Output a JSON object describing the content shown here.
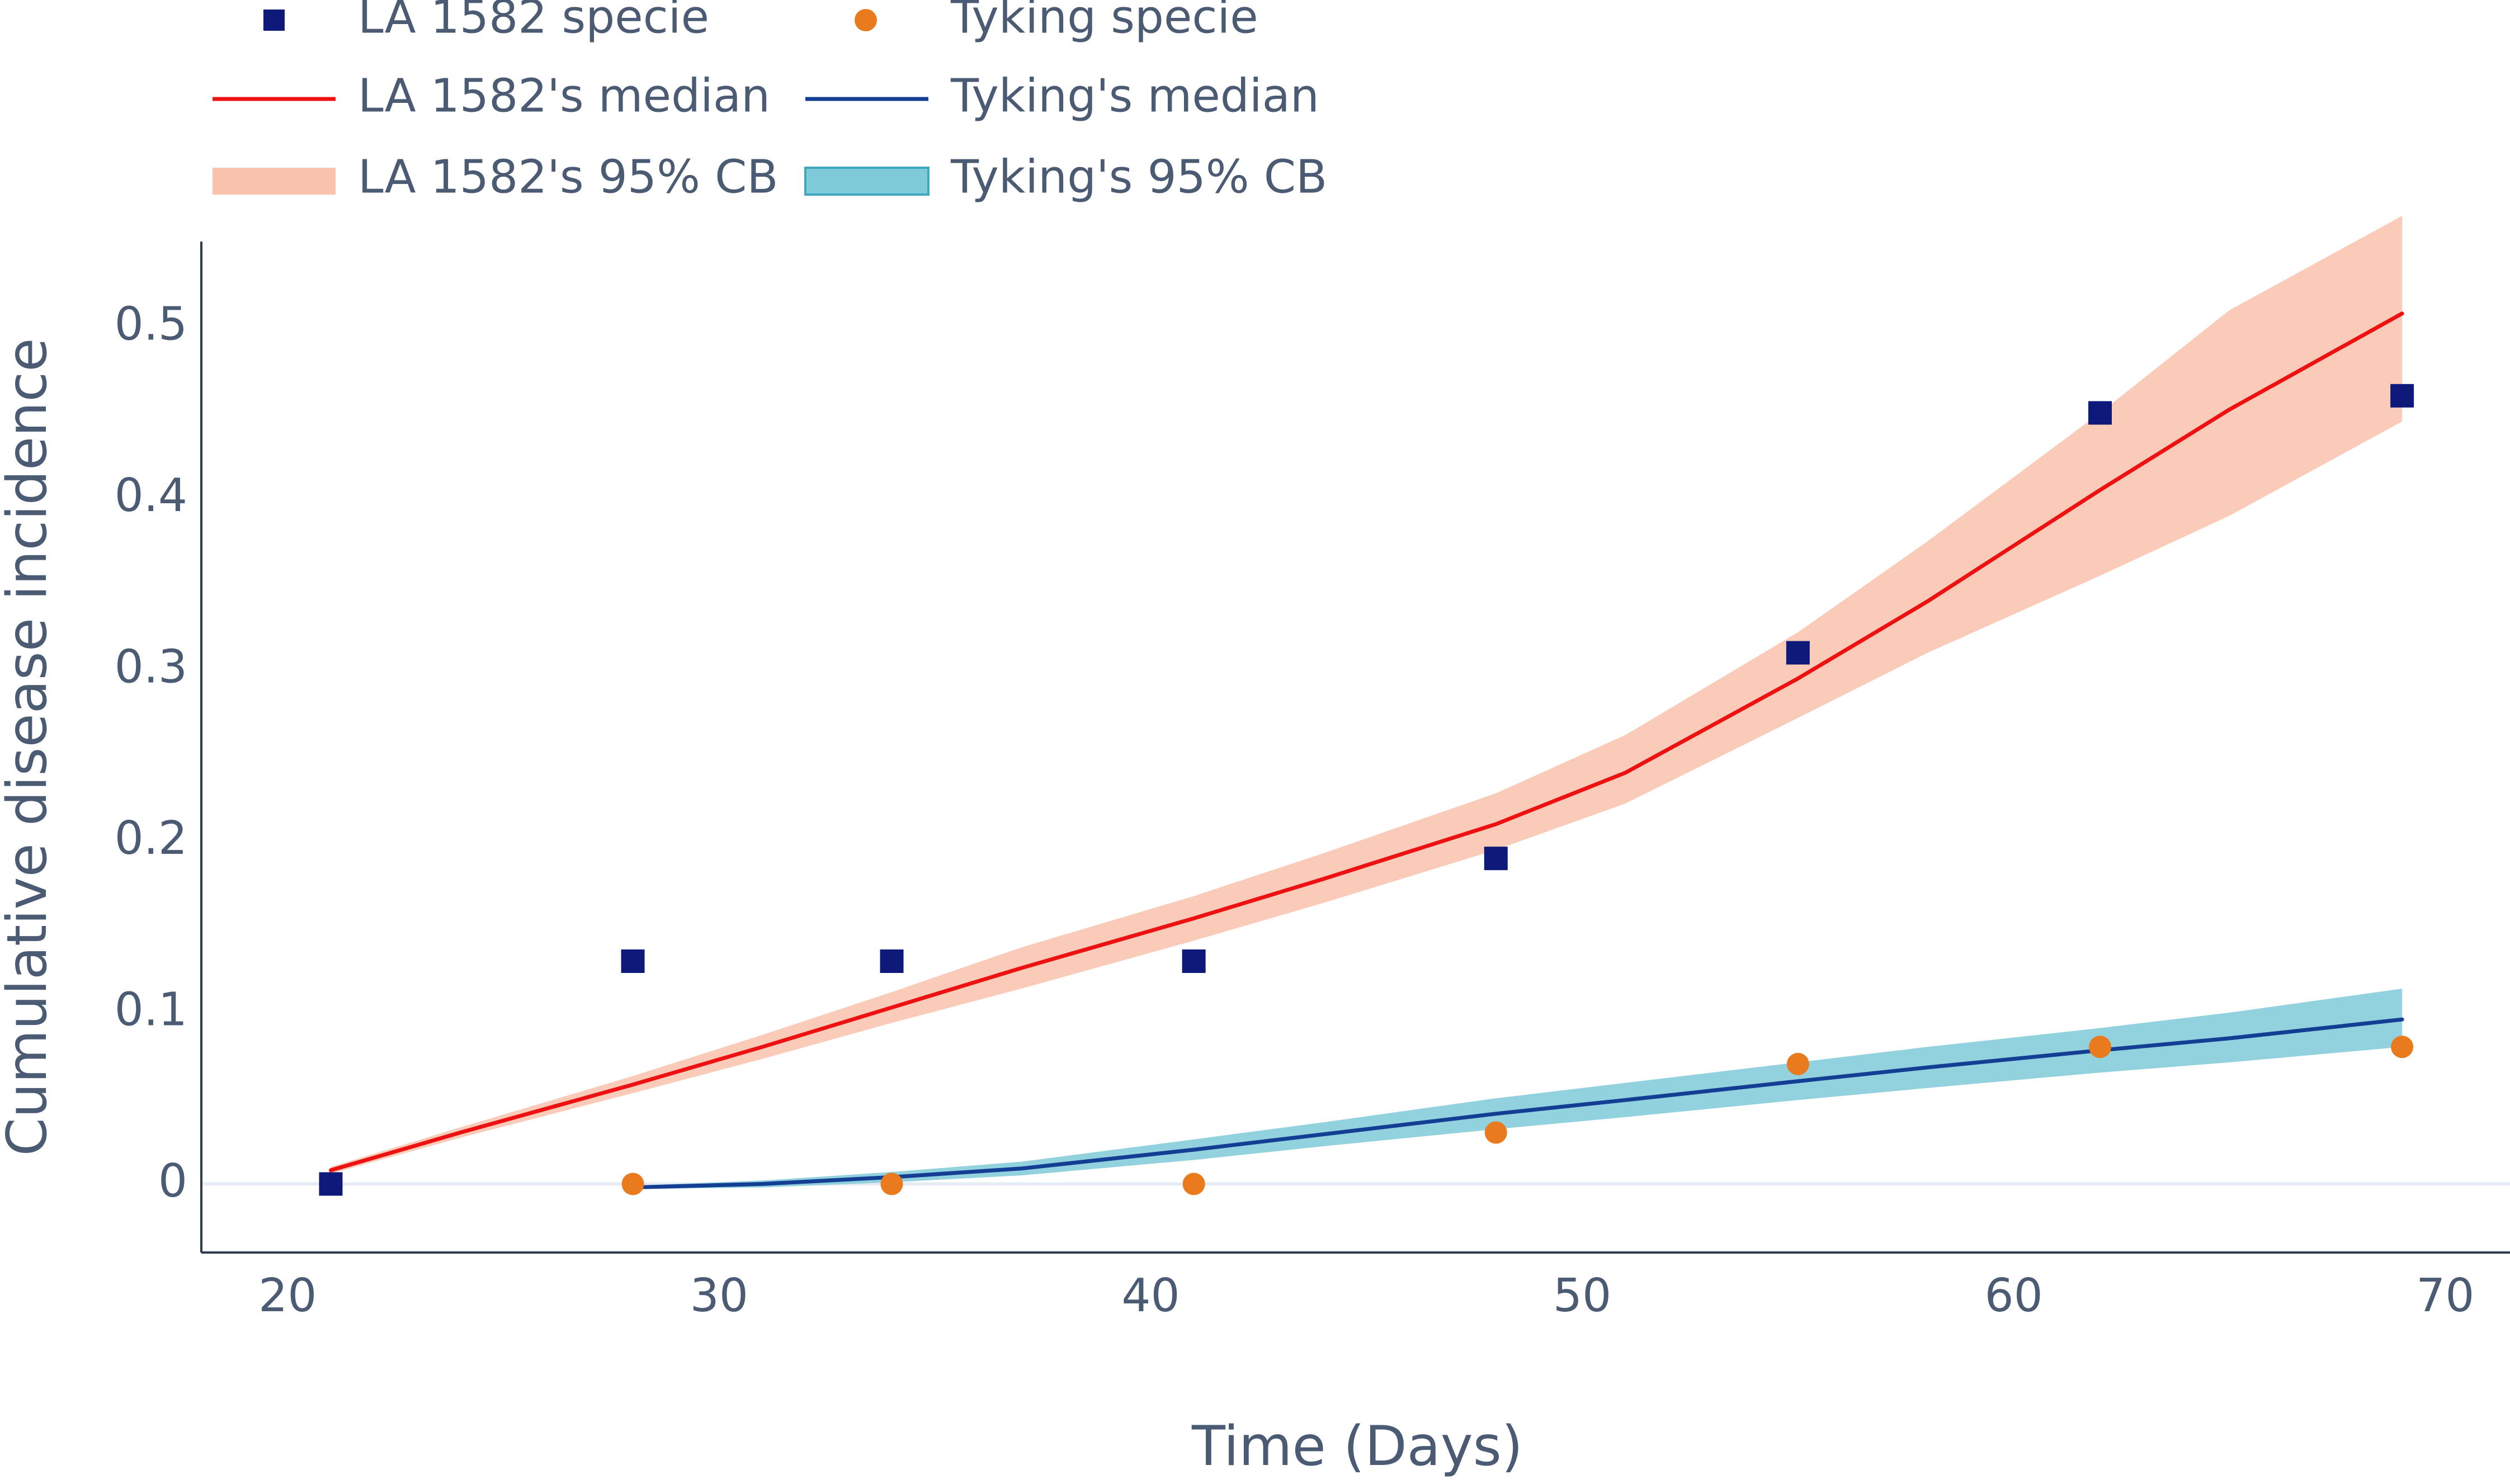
{
  "chart_data": {
    "type": "line",
    "title": "",
    "xlabel": "Time (Days)",
    "ylabel": "Cumulative disease incidence",
    "xlim": [
      18,
      71.5
    ],
    "ylim": [
      -0.04,
      0.55
    ],
    "x_ticks": [
      20,
      30,
      40,
      50,
      60,
      70
    ],
    "x_tick_labels": [
      "20",
      "30",
      "40",
      "50",
      "60",
      "70"
    ],
    "y_ticks": [
      0,
      0.1,
      0.2,
      0.3,
      0.4,
      0.5
    ],
    "y_tick_labels": [
      "0",
      "0.1",
      "0.2",
      "0.3",
      "0.4",
      "0.5"
    ],
    "grid": false,
    "zero_line": true,
    "legend_position": "top-left",
    "colors": {
      "la_points": "#0d1a7a",
      "tyking_points": "#ea7a1e",
      "la_median": "#ee1111",
      "tyking_median": "#143e94",
      "la_band": "#f9c2ad",
      "tyking_band": "#7ecad8",
      "axis": "#2f3b4c",
      "text": "#4b5b73",
      "zero_line": "#e6ecf3"
    },
    "legend": [
      {
        "label": "LA 1582 specie",
        "symbol": "square",
        "color_key": "la_points"
      },
      {
        "label": "Tyking specie",
        "symbol": "circle",
        "color_key": "tyking_points"
      },
      {
        "label": "LA 1582's median",
        "symbol": "line",
        "color_key": "la_median"
      },
      {
        "label": "Tyking's median",
        "symbol": "line",
        "color_key": "tyking_median"
      },
      {
        "label": "LA 1582's 95% CB",
        "symbol": "band",
        "color_key": "la_band"
      },
      {
        "label": "Tyking's 95% CB",
        "symbol": "band",
        "color_key": "tyking_band"
      }
    ],
    "series": [
      {
        "name": "LA 1582 specie",
        "kind": "scatter",
        "marker": "square",
        "color_key": "la_points",
        "x": [
          21,
          28,
          34,
          41,
          48,
          55,
          62,
          69
        ],
        "y": [
          0,
          0.13,
          0.13,
          0.13,
          0.19,
          0.31,
          0.45,
          0.46
        ]
      },
      {
        "name": "Tyking specie",
        "kind": "scatter",
        "marker": "circle",
        "color_key": "tyking_points",
        "x": [
          28,
          34,
          41,
          48,
          55,
          62,
          69
        ],
        "y": [
          0,
          0,
          0,
          0.03,
          0.07,
          0.08,
          0.08
        ]
      },
      {
        "name": "LA 1582's median",
        "kind": "line",
        "color_key": "la_median",
        "x": [
          21,
          24,
          28,
          31,
          34,
          37,
          41,
          44,
          48,
          51,
          55,
          58,
          62,
          65,
          69
        ],
        "y": [
          0.008,
          0.03,
          0.058,
          0.08,
          0.103,
          0.126,
          0.155,
          0.178,
          0.21,
          0.24,
          0.295,
          0.34,
          0.405,
          0.452,
          0.508
        ]
      },
      {
        "name": "Tyking's median",
        "kind": "line",
        "color_key": "tyking_median",
        "x": [
          28,
          31,
          34,
          37,
          41,
          44,
          48,
          51,
          55,
          58,
          62,
          65,
          69
        ],
        "y": [
          -0.002,
          0.0,
          0.004,
          0.009,
          0.02,
          0.029,
          0.041,
          0.049,
          0.06,
          0.068,
          0.078,
          0.085,
          0.096
        ]
      },
      {
        "name": "LA 1582's 95% CB",
        "kind": "band",
        "color_key": "la_band",
        "x": [
          21,
          24,
          28,
          31,
          34,
          37,
          41,
          44,
          48,
          51,
          55,
          58,
          62,
          65,
          69
        ],
        "lower": [
          0.006,
          0.027,
          0.053,
          0.073,
          0.094,
          0.114,
          0.142,
          0.164,
          0.195,
          0.222,
          0.272,
          0.31,
          0.355,
          0.39,
          0.445
        ],
        "upper": [
          0.01,
          0.033,
          0.063,
          0.087,
          0.112,
          0.138,
          0.168,
          0.193,
          0.228,
          0.262,
          0.322,
          0.375,
          0.45,
          0.51,
          0.565
        ]
      },
      {
        "name": "Tyking's 95% CB",
        "kind": "band",
        "color_key": "tyking_band",
        "x": [
          28,
          31,
          34,
          37,
          41,
          44,
          48,
          51,
          55,
          58,
          62,
          65,
          69
        ],
        "lower": [
          -0.003,
          -0.002,
          0.001,
          0.005,
          0.014,
          0.022,
          0.032,
          0.039,
          0.049,
          0.056,
          0.065,
          0.071,
          0.08
        ],
        "upper": [
          -0.001,
          0.002,
          0.007,
          0.013,
          0.026,
          0.036,
          0.05,
          0.059,
          0.071,
          0.08,
          0.091,
          0.1,
          0.114
        ]
      }
    ]
  }
}
